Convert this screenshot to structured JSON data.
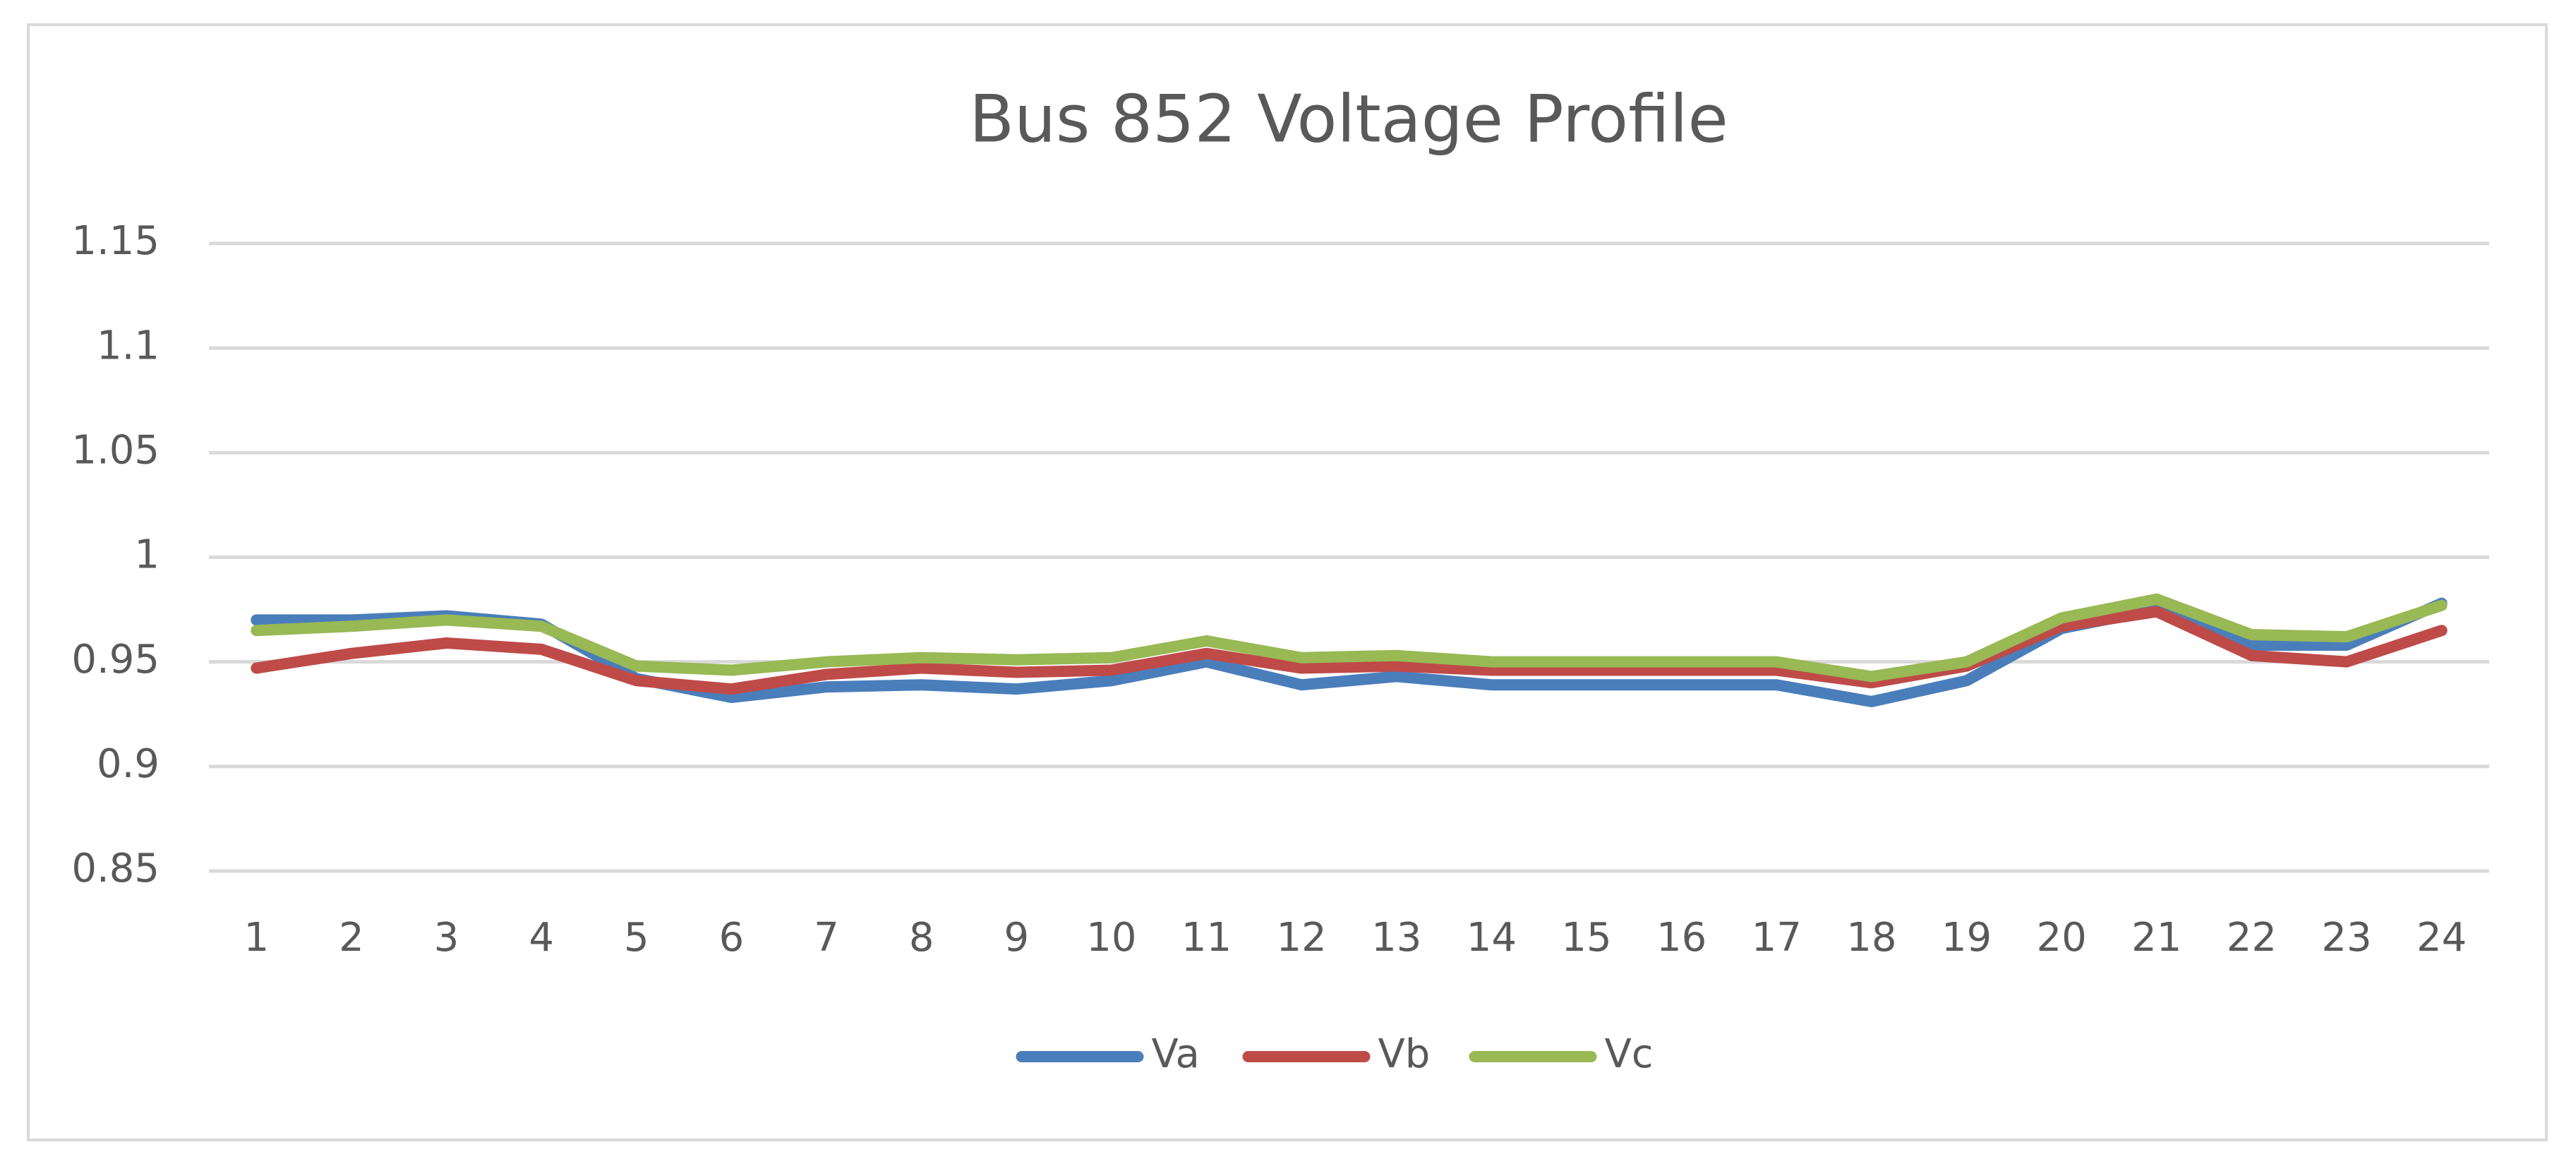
{
  "chart_data": {
    "type": "line",
    "title": "Bus 852 Voltage Profile",
    "categories": [
      "1",
      "2",
      "3",
      "4",
      "5",
      "6",
      "7",
      "8",
      "9",
      "10",
      "11",
      "12",
      "13",
      "14",
      "15",
      "16",
      "17",
      "18",
      "19",
      "20",
      "21",
      "22",
      "23",
      "24"
    ],
    "series": [
      {
        "name": "Va",
        "color": "#4a7ebb",
        "values": [
          0.97,
          0.97,
          0.972,
          0.968,
          0.942,
          0.933,
          0.938,
          0.939,
          0.937,
          0.941,
          0.95,
          0.939,
          0.943,
          0.939,
          0.939,
          0.939,
          0.939,
          0.931,
          0.941,
          0.966,
          0.975,
          0.958,
          0.958,
          0.978
        ]
      },
      {
        "name": "Vb",
        "color": "#be4b48",
        "values": [
          0.947,
          0.954,
          0.959,
          0.956,
          0.941,
          0.937,
          0.944,
          0.947,
          0.945,
          0.946,
          0.954,
          0.947,
          0.948,
          0.946,
          0.946,
          0.946,
          0.946,
          0.94,
          0.948,
          0.967,
          0.974,
          0.953,
          0.95,
          0.965
        ]
      },
      {
        "name": "Vc",
        "color": "#98b954",
        "values": [
          0.965,
          0.967,
          0.97,
          0.967,
          0.948,
          0.946,
          0.95,
          0.952,
          0.951,
          0.952,
          0.96,
          0.952,
          0.953,
          0.95,
          0.95,
          0.95,
          0.95,
          0.943,
          0.95,
          0.971,
          0.98,
          0.963,
          0.962,
          0.977
        ]
      }
    ],
    "ylim": [
      0.85,
      1.15
    ],
    "yticks": [
      0.85,
      0.9,
      0.95,
      1,
      1.05,
      1.1,
      1.15
    ],
    "grid": true,
    "legend": "bottom"
  }
}
